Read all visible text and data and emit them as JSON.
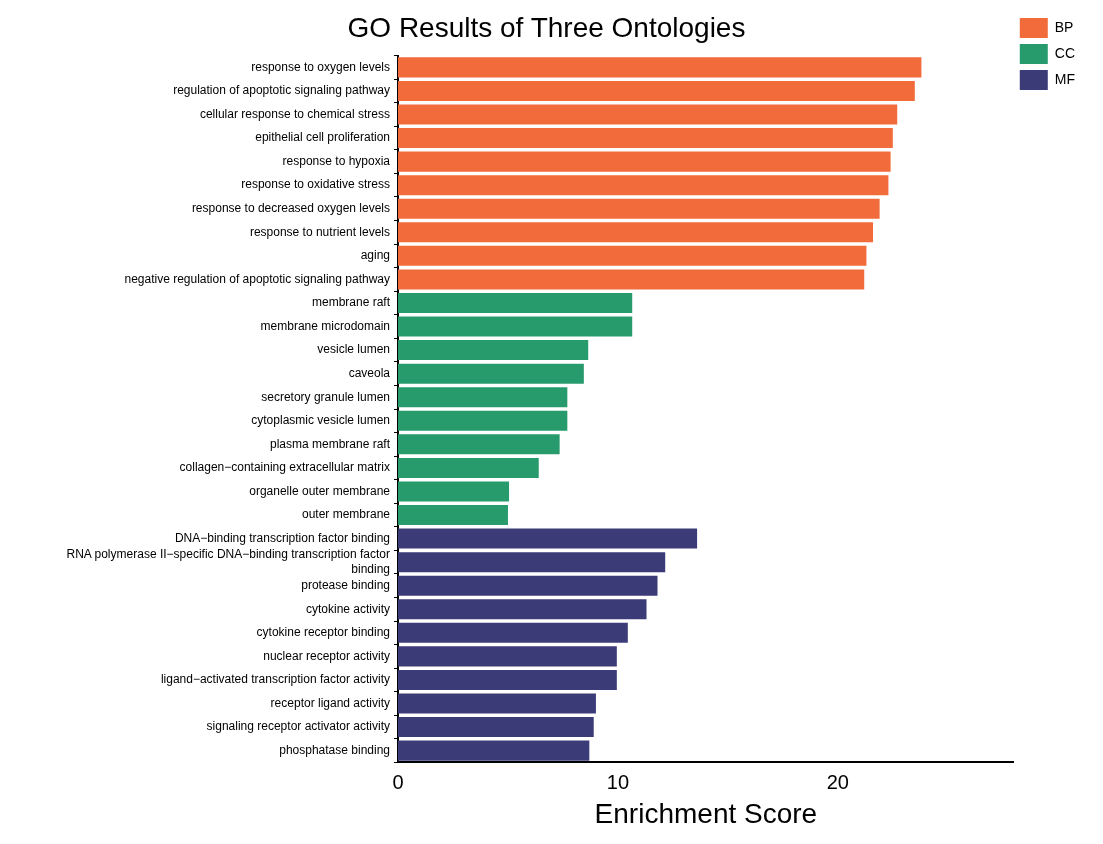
{
  "chart_data": {
    "type": "bar",
    "orientation": "horizontal",
    "title": "GO Results of Three Ontologies",
    "xlabel": "Enrichment Score",
    "categories": [
      "response to oxygen levels",
      "regulation of apoptotic signaling pathway",
      "cellular response to chemical stress",
      "epithelial cell proliferation",
      "response to hypoxia",
      "response to oxidative stress",
      "response to decreased oxygen levels",
      "response to nutrient levels",
      "aging",
      "negative regulation of apoptotic signaling pathway",
      "membrane raft",
      "membrane microdomain",
      "vesicle lumen",
      "caveola",
      "secretory granule lumen",
      "cytoplasmic vesicle lumen",
      "plasma membrane raft",
      "collagen−containing extracellular matrix",
      "organelle outer membrane",
      "outer membrane",
      "DNA−binding transcription factor binding",
      "RNA polymerase II−specific DNA−binding transcription factor binding",
      "protease binding",
      "cytokine activity",
      "cytokine receptor binding",
      "nuclear receptor activity",
      "ligand−activated transcription factor activity",
      "receptor ligand activity",
      "signaling receptor activator activity",
      "phosphatase binding"
    ],
    "series": [
      {
        "name": "BP",
        "color": "#f26b3a",
        "values": [
          23.8,
          23.5,
          22.7,
          22.5,
          22.4,
          22.3,
          21.9,
          21.6,
          21.3,
          21.2,
          null,
          null,
          null,
          null,
          null,
          null,
          null,
          null,
          null,
          null,
          null,
          null,
          null,
          null,
          null,
          null,
          null,
          null,
          null,
          null
        ]
      },
      {
        "name": "CC",
        "color": "#279b6c",
        "values": [
          null,
          null,
          null,
          null,
          null,
          null,
          null,
          null,
          null,
          null,
          10.65,
          10.65,
          8.65,
          8.45,
          7.7,
          7.7,
          7.35,
          6.4,
          5.05,
          5.0,
          null,
          null,
          null,
          null,
          null,
          null,
          null,
          null,
          null,
          null
        ]
      },
      {
        "name": "MF",
        "color": "#3b3b78",
        "values": [
          null,
          null,
          null,
          null,
          null,
          null,
          null,
          null,
          null,
          null,
          null,
          null,
          null,
          null,
          null,
          null,
          null,
          null,
          null,
          null,
          13.6,
          12.15,
          11.8,
          11.3,
          10.45,
          9.95,
          9.95,
          9.0,
          8.9,
          8.7
        ]
      }
    ],
    "xlim": [
      0,
      28
    ],
    "xticks": [
      0,
      10,
      20
    ],
    "grid": false,
    "legend": "right"
  }
}
